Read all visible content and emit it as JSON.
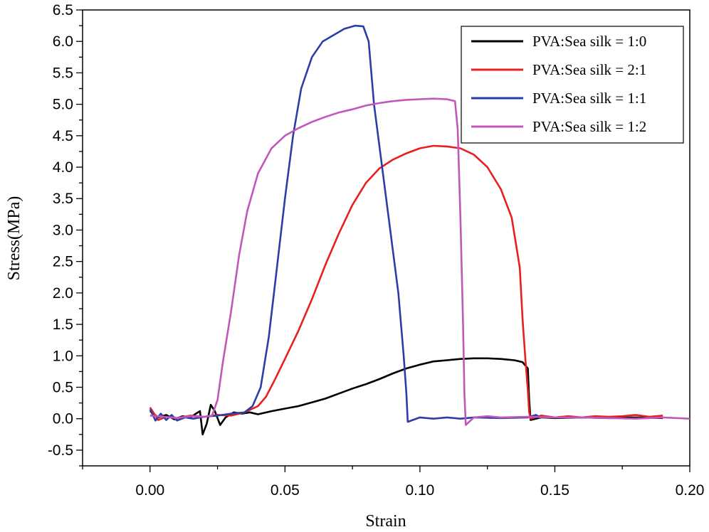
{
  "chart_data": {
    "type": "line",
    "title": "",
    "xlabel": "Strain",
    "ylabel": "Stress(MPa)",
    "xlim": [
      -0.025,
      0.2
    ],
    "ylim": [
      -0.75,
      6.5
    ],
    "x_ticks": [
      0.0,
      0.05,
      0.1,
      0.15,
      0.2
    ],
    "x_tick_labels": [
      "0.00",
      "0.05",
      "0.10",
      "0.15",
      "0.20"
    ],
    "y_ticks": [
      -0.5,
      0.0,
      0.5,
      1.0,
      1.5,
      2.0,
      2.5,
      3.0,
      3.5,
      4.0,
      4.5,
      5.0,
      5.5,
      6.0,
      6.5
    ],
    "y_tick_labels": [
      "-0.5",
      "0.0",
      "0.5",
      "1.0",
      "1.5",
      "2.0",
      "2.5",
      "3.0",
      "3.5",
      "4.0",
      "4.5",
      "5.0",
      "5.5",
      "6.0",
      "6.5"
    ],
    "grid": false,
    "legend_position": "top-right",
    "series": [
      {
        "name": "PVA:Sea silk = 1:0",
        "color": "#000000",
        "points": [
          [
            0.0,
            0.12
          ],
          [
            0.003,
            0.02
          ],
          [
            0.006,
            0.06
          ],
          [
            0.009,
            -0.01
          ],
          [
            0.012,
            0.04
          ],
          [
            0.015,
            0.02
          ],
          [
            0.017,
            0.08
          ],
          [
            0.0185,
            0.12
          ],
          [
            0.0195,
            -0.25
          ],
          [
            0.021,
            -0.08
          ],
          [
            0.0225,
            0.22
          ],
          [
            0.024,
            0.12
          ],
          [
            0.026,
            -0.1
          ],
          [
            0.028,
            0.02
          ],
          [
            0.031,
            0.1
          ],
          [
            0.034,
            0.08
          ],
          [
            0.037,
            0.1
          ],
          [
            0.04,
            0.07
          ],
          [
            0.045,
            0.12
          ],
          [
            0.05,
            0.16
          ],
          [
            0.055,
            0.2
          ],
          [
            0.06,
            0.26
          ],
          [
            0.065,
            0.32
          ],
          [
            0.07,
            0.4
          ],
          [
            0.075,
            0.48
          ],
          [
            0.08,
            0.55
          ],
          [
            0.085,
            0.63
          ],
          [
            0.09,
            0.72
          ],
          [
            0.095,
            0.8
          ],
          [
            0.1,
            0.86
          ],
          [
            0.105,
            0.91
          ],
          [
            0.11,
            0.93
          ],
          [
            0.115,
            0.95
          ],
          [
            0.12,
            0.96
          ],
          [
            0.125,
            0.96
          ],
          [
            0.13,
            0.95
          ],
          [
            0.135,
            0.93
          ],
          [
            0.138,
            0.9
          ],
          [
            0.14,
            0.8
          ],
          [
            0.1405,
            0.3
          ],
          [
            0.141,
            -0.02
          ],
          [
            0.145,
            0.02
          ],
          [
            0.15,
            0.01
          ],
          [
            0.16,
            0.02
          ],
          [
            0.17,
            0.01
          ],
          [
            0.18,
            0.02
          ],
          [
            0.19,
            0.01
          ]
        ]
      },
      {
        "name": "PVA:Sea silk = 2:1",
        "color": "#e81f1f",
        "points": [
          [
            0.0,
            0.18
          ],
          [
            0.003,
            -0.02
          ],
          [
            0.006,
            0.03
          ],
          [
            0.01,
            0.01
          ],
          [
            0.015,
            0.05
          ],
          [
            0.02,
            0.03
          ],
          [
            0.025,
            0.06
          ],
          [
            0.03,
            0.05
          ],
          [
            0.035,
            0.1
          ],
          [
            0.04,
            0.2
          ],
          [
            0.043,
            0.35
          ],
          [
            0.046,
            0.6
          ],
          [
            0.05,
            0.95
          ],
          [
            0.055,
            1.4
          ],
          [
            0.06,
            1.9
          ],
          [
            0.065,
            2.45
          ],
          [
            0.07,
            2.95
          ],
          [
            0.075,
            3.4
          ],
          [
            0.08,
            3.75
          ],
          [
            0.085,
            3.98
          ],
          [
            0.09,
            4.12
          ],
          [
            0.095,
            4.22
          ],
          [
            0.1,
            4.3
          ],
          [
            0.105,
            4.34
          ],
          [
            0.11,
            4.33
          ],
          [
            0.115,
            4.3
          ],
          [
            0.12,
            4.2
          ],
          [
            0.125,
            4.0
          ],
          [
            0.13,
            3.65
          ],
          [
            0.134,
            3.2
          ],
          [
            0.137,
            2.4
          ],
          [
            0.138,
            1.6
          ],
          [
            0.139,
            1.0
          ],
          [
            0.14,
            0.45
          ],
          [
            0.1405,
            0.1
          ],
          [
            0.141,
            0.0
          ],
          [
            0.145,
            0.05
          ],
          [
            0.15,
            0.02
          ],
          [
            0.155,
            0.04
          ],
          [
            0.16,
            0.02
          ],
          [
            0.165,
            0.04
          ],
          [
            0.17,
            0.03
          ],
          [
            0.175,
            0.04
          ],
          [
            0.18,
            0.06
          ],
          [
            0.185,
            0.03
          ],
          [
            0.19,
            0.05
          ]
        ]
      },
      {
        "name": "PVA:Sea silk = 1:1",
        "color": "#2b3ea8",
        "points": [
          [
            0.0,
            0.15
          ],
          [
            0.002,
            -0.03
          ],
          [
            0.004,
            0.08
          ],
          [
            0.006,
            -0.02
          ],
          [
            0.008,
            0.06
          ],
          [
            0.01,
            -0.03
          ],
          [
            0.013,
            0.02
          ],
          [
            0.016,
            0.0
          ],
          [
            0.02,
            0.03
          ],
          [
            0.025,
            0.05
          ],
          [
            0.03,
            0.08
          ],
          [
            0.035,
            0.1
          ],
          [
            0.038,
            0.2
          ],
          [
            0.041,
            0.5
          ],
          [
            0.044,
            1.3
          ],
          [
            0.047,
            2.4
          ],
          [
            0.05,
            3.5
          ],
          [
            0.053,
            4.5
          ],
          [
            0.056,
            5.25
          ],
          [
            0.06,
            5.75
          ],
          [
            0.064,
            6.0
          ],
          [
            0.068,
            6.1
          ],
          [
            0.072,
            6.2
          ],
          [
            0.076,
            6.25
          ],
          [
            0.079,
            6.24
          ],
          [
            0.081,
            6.0
          ],
          [
            0.083,
            5.0
          ],
          [
            0.086,
            4.0
          ],
          [
            0.089,
            3.0
          ],
          [
            0.092,
            2.0
          ],
          [
            0.094,
            1.0
          ],
          [
            0.095,
            0.4
          ],
          [
            0.0955,
            -0.05
          ],
          [
            0.1,
            0.02
          ],
          [
            0.105,
            0.0
          ],
          [
            0.11,
            0.02
          ],
          [
            0.115,
            0.0
          ],
          [
            0.12,
            0.02
          ],
          [
            0.13,
            0.01
          ],
          [
            0.14,
            0.02
          ],
          [
            0.143,
            0.06
          ],
          [
            0.145,
            0.01
          ]
        ]
      },
      {
        "name": "PVA:Sea silk = 1:2",
        "color": "#c257bb",
        "points": [
          [
            0.0,
            0.05
          ],
          [
            0.005,
            0.03
          ],
          [
            0.01,
            0.01
          ],
          [
            0.015,
            0.04
          ],
          [
            0.02,
            0.03
          ],
          [
            0.023,
            0.05
          ],
          [
            0.025,
            0.3
          ],
          [
            0.027,
            0.9
          ],
          [
            0.03,
            1.7
          ],
          [
            0.033,
            2.6
          ],
          [
            0.036,
            3.3
          ],
          [
            0.04,
            3.9
          ],
          [
            0.045,
            4.3
          ],
          [
            0.05,
            4.5
          ],
          [
            0.055,
            4.62
          ],
          [
            0.06,
            4.72
          ],
          [
            0.065,
            4.8
          ],
          [
            0.07,
            4.87
          ],
          [
            0.075,
            4.92
          ],
          [
            0.08,
            4.98
          ],
          [
            0.085,
            5.02
          ],
          [
            0.09,
            5.05
          ],
          [
            0.095,
            5.07
          ],
          [
            0.1,
            5.08
          ],
          [
            0.105,
            5.09
          ],
          [
            0.11,
            5.08
          ],
          [
            0.113,
            5.05
          ],
          [
            0.114,
            4.6
          ],
          [
            0.115,
            3.2
          ],
          [
            0.116,
            1.5
          ],
          [
            0.1165,
            0.4
          ],
          [
            0.117,
            -0.1
          ],
          [
            0.12,
            0.02
          ],
          [
            0.125,
            0.04
          ],
          [
            0.13,
            0.02
          ],
          [
            0.14,
            0.03
          ],
          [
            0.15,
            0.02
          ],
          [
            0.16,
            0.02
          ],
          [
            0.17,
            0.01
          ],
          [
            0.18,
            0.0
          ],
          [
            0.19,
            0.02
          ],
          [
            0.2,
            0.0
          ]
        ]
      }
    ]
  }
}
